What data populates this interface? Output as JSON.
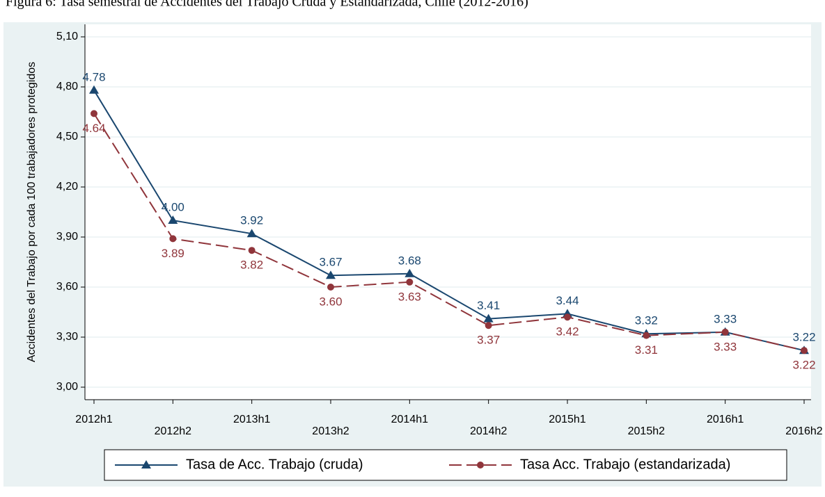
{
  "chart_data": {
    "type": "line",
    "title": "Figura 6: Tasa semestral de Accidentes del Trabajo Cruda y Estandarizada, Chile (2012-2016)",
    "y_label": "Accidentes del Trabajo por cada 100 trabajadores protegidos",
    "categories": [
      "2012h1",
      "2012h2",
      "2013h1",
      "2013h2",
      "2014h1",
      "2014h2",
      "2015h1",
      "2015h2",
      "2016h1",
      "2016h2"
    ],
    "series": [
      {
        "name": "Tasa de Acc. Trabajo (cruda)",
        "color": "#1a476f",
        "marker": "triangle",
        "dash": false,
        "values": [
          4.78,
          4.0,
          3.92,
          3.67,
          3.68,
          3.41,
          3.44,
          3.32,
          3.33,
          3.22
        ],
        "value_labels": [
          "4.78",
          "4.00",
          "3.92",
          "3.67",
          "3.68",
          "3.41",
          "3.44",
          "3.32",
          "3.33",
          "3.22"
        ]
      },
      {
        "name": "Tasa Acc. Trabajo (estandarizada)",
        "color": "#90353b",
        "marker": "circle",
        "dash": true,
        "values": [
          4.64,
          3.89,
          3.82,
          3.6,
          3.63,
          3.37,
          3.42,
          3.31,
          3.33,
          3.22
        ],
        "value_labels": [
          "4.64",
          "3.89",
          "3.82",
          "3.60",
          "3.63",
          "3.37",
          "3.42",
          "3.31",
          "3.33",
          "3.22"
        ]
      }
    ],
    "ylim": [
      2.925,
      5.175
    ],
    "yticks": [
      {
        "value": 3.0,
        "label": "3,00"
      },
      {
        "value": 3.3,
        "label": "3,30"
      },
      {
        "value": 3.6,
        "label": "3,60"
      },
      {
        "value": 3.9,
        "label": "3,90"
      },
      {
        "value": 4.2,
        "label": "4,20"
      },
      {
        "value": 4.5,
        "label": "4,50"
      },
      {
        "value": 4.8,
        "label": "4,80"
      },
      {
        "value": 5.1,
        "label": "5,10"
      }
    ],
    "grid": true
  }
}
